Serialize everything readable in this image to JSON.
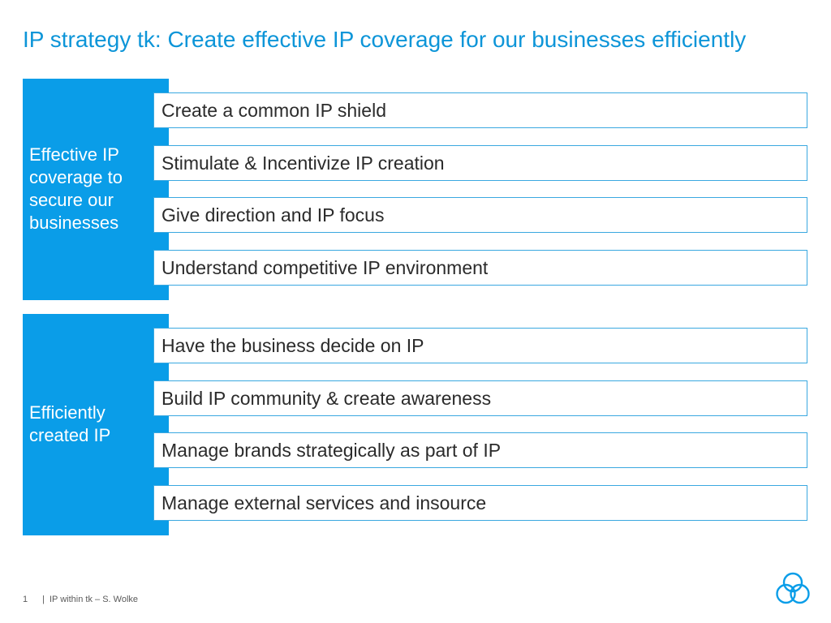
{
  "title": "IP strategy tk: Create effective IP coverage for our businesses efficiently",
  "sections": [
    {
      "label": "Effective IP coverage to secure our businesses",
      "items": [
        "Create a common IP shield",
        "Stimulate & Incentivize IP creation",
        "Give direction and IP focus",
        "Understand competitive IP environment"
      ]
    },
    {
      "label": "Efficiently created IP",
      "items": [
        "Have the business decide on IP",
        "Build IP community & create awareness",
        "Manage brands strategically as part of IP",
        "Manage external services and insource"
      ]
    }
  ],
  "footer": {
    "page_number": "1",
    "separator": "|",
    "text": "IP within tk – S. Wolke"
  },
  "colors": {
    "accent": "#0a9de8",
    "title": "#0d95d8",
    "item_border": "#3aa8e0"
  },
  "icons": {
    "logo": "thyssenkrupp-rings-logo"
  }
}
